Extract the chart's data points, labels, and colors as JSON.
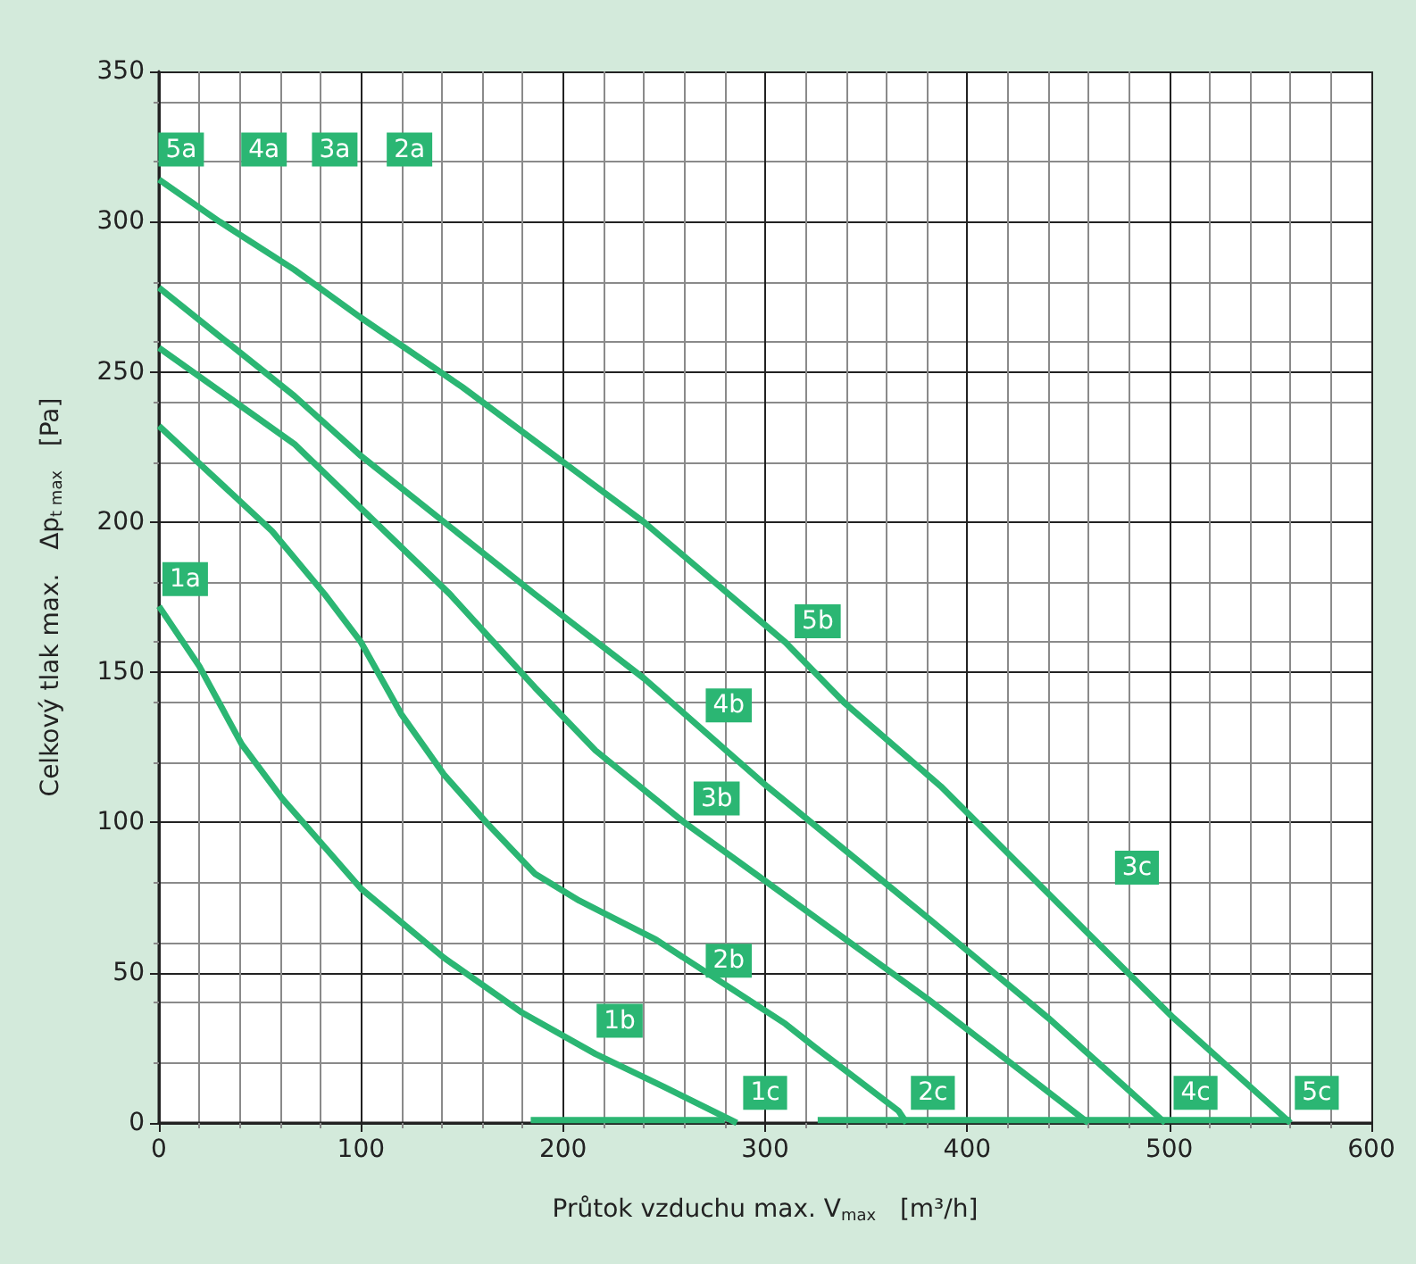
{
  "chart_data": {
    "type": "line",
    "xlabel": "Průtok vzduchu max. V$_{max}$   [m³/h]",
    "ylabel": "Celkový tlak max.   Δp$_{t max}$   [Pa]",
    "xlim": [
      0,
      600
    ],
    "xticks": [
      0,
      100,
      200,
      300,
      400,
      500,
      600
    ],
    "ylim": [
      0,
      350
    ],
    "yticks": [
      0,
      50,
      100,
      150,
      200,
      250,
      300,
      350
    ],
    "grid": true,
    "series": [
      {
        "color": "#2bb673",
        "x": [
          0,
          20,
          41,
          61,
          100,
          141,
          179,
          216,
          250,
          286
        ],
        "values": [
          172,
          152,
          126,
          108,
          78,
          55,
          37,
          23,
          12,
          0
        ]
      },
      {
        "color": "#2bb673",
        "x": [
          0,
          56,
          82,
          100,
          120,
          141,
          162,
          186,
          208,
          246,
          310,
          325,
          366,
          370
        ],
        "values": [
          232,
          197,
          176,
          160,
          136,
          116,
          100,
          83,
          74,
          61,
          33,
          25,
          4,
          0
        ]
      },
      {
        "color": "#2bb673",
        "x": [
          0,
          67,
          144,
          186,
          216,
          260,
          295,
          381,
          460
        ],
        "values": [
          258,
          226,
          176,
          145,
          124,
          100,
          83,
          41,
          0
        ]
      },
      {
        "color": "#2bb673",
        "x": [
          0,
          67,
          100,
          186,
          240,
          301,
          381,
          440,
          498
        ],
        "values": [
          278,
          242,
          222,
          176,
          148,
          112,
          68,
          35,
          0
        ]
      },
      {
        "color": "#2bb673",
        "x": [
          0,
          30,
          67,
          100,
          150,
          208,
          240,
          310,
          339,
          387,
          460,
          502,
          560
        ],
        "values": [
          314,
          300,
          284,
          268,
          245,
          216,
          200,
          160,
          140,
          112,
          63,
          35,
          0
        ]
      },
      {
        "color": "#2bb673",
        "x": [
          184,
          280,
          303,
          326,
          560
        ],
        "values": [
          1,
          1,
          null,
          1,
          1
        ]
      }
    ],
    "annotations": [
      {
        "text": "5a",
        "x": 11,
        "y": 324
      },
      {
        "text": "4a",
        "x": 52,
        "y": 324
      },
      {
        "text": "3a",
        "x": 87,
        "y": 324
      },
      {
        "text": "2a",
        "x": 124,
        "y": 324
      },
      {
        "text": "1a",
        "x": 13,
        "y": 181
      },
      {
        "text": "5b",
        "x": 326,
        "y": 167
      },
      {
        "text": "4b",
        "x": 282,
        "y": 139
      },
      {
        "text": "3b",
        "x": 276,
        "y": 108
      },
      {
        "text": "2b",
        "x": 282,
        "y": 54
      },
      {
        "text": "1b",
        "x": 228,
        "y": 34
      },
      {
        "text": "1c",
        "x": 300,
        "y": 10
      },
      {
        "text": "2c",
        "x": 383,
        "y": 10
      },
      {
        "text": "3c",
        "x": 484,
        "y": 85
      },
      {
        "text": "4c",
        "x": 513,
        "y": 10
      },
      {
        "text": "5c",
        "x": 573,
        "y": 10
      }
    ]
  }
}
